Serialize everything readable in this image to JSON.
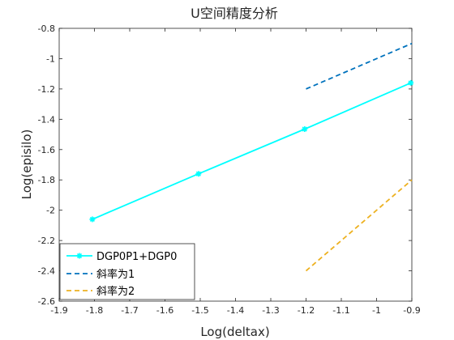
{
  "chart_data": {
    "type": "line",
    "title": "U空间精度分析",
    "xlabel": "Log(deltax)",
    "ylabel": "Log(episilo)",
    "xlim": [
      -1.9,
      -0.9
    ],
    "ylim": [
      -2.6,
      -0.8
    ],
    "xticks": [
      -1.9,
      -1.8,
      -1.7,
      -1.6,
      -1.5,
      -1.4,
      -1.3,
      -1.2,
      -1.1,
      -1,
      -0.9
    ],
    "yticks": [
      -2.6,
      -2.4,
      -2.2,
      -2,
      -1.8,
      -1.6,
      -1.4,
      -1.2,
      -1,
      -0.8
    ],
    "xtick_labels": [
      "-1.9",
      "-1.8",
      "-1.7",
      "-1.6",
      "-1.5",
      "-1.4",
      "-1.3",
      "-1.2",
      "-1.1",
      "-1",
      "-0.9"
    ],
    "ytick_labels": [
      "-2.6",
      "-2.4",
      "-2.2",
      "-2",
      "-1.8",
      "-1.6",
      "-1.4",
      "-1.2",
      "-1",
      "-0.8"
    ],
    "grid": false,
    "legend_position": "bottom-left",
    "series": [
      {
        "name": "DGP0P1+DGP0",
        "color": "#00ffff",
        "style": "solid",
        "marker": "asterisk",
        "x": [
          -1.806,
          -1.505,
          -1.204,
          -0.903
        ],
        "y": [
          -2.06,
          -1.76,
          -1.465,
          -1.16
        ]
      },
      {
        "name": "斜率为1",
        "color": "#0072bd",
        "style": "dashed",
        "marker": "none",
        "x": [
          -1.2,
          -0.9
        ],
        "y": [
          -1.2,
          -0.9
        ]
      },
      {
        "name": "斜率为2",
        "color": "#edb120",
        "style": "dashed",
        "marker": "none",
        "x": [
          -1.2,
          -0.9
        ],
        "y": [
          -2.4,
          -1.8
        ]
      }
    ]
  }
}
